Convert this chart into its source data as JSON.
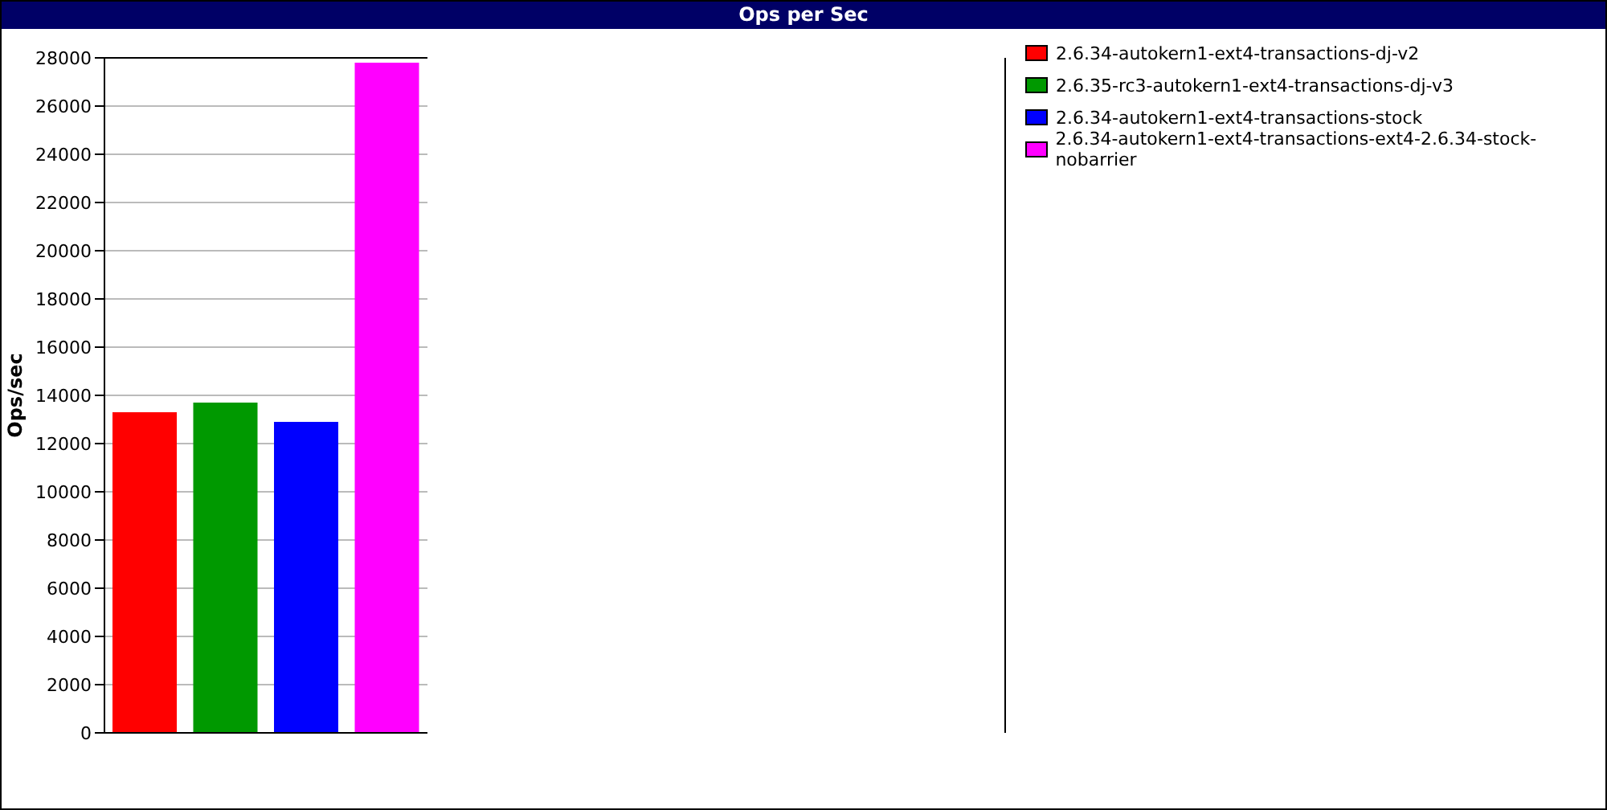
{
  "chart_data": {
    "type": "bar",
    "title": "Ops per Sec",
    "ylabel": "Ops/sec",
    "categories": [
      null,
      null,
      null,
      null
    ],
    "stacked": true,
    "series": [
      {
        "name": "2.6.34-autokern1-ext4-transactions-dj-v2",
        "color": "#ff0000",
        "values": [
          13300,
          null,
          null,
          null
        ]
      },
      {
        "name": "2.6.35-rc3-autokern1-ext4-transactions-dj-v3",
        "color": "#009900",
        "values": [
          null,
          13700,
          null,
          null
        ]
      },
      {
        "name": "2.6.34-autokern1-ext4-transactions-stock",
        "color": "#0000ff",
        "values": [
          null,
          null,
          12900,
          null
        ]
      },
      {
        "name": "2.6.34-autokern1-ext4-transactions-ext4-2.6.34-stock-nobarrier",
        "color": "#ff00ff",
        "values": [
          null,
          null,
          null,
          27800
        ]
      }
    ],
    "ylim": [
      0,
      28000
    ],
    "yticks": [
      0,
      2000,
      4000,
      6000,
      8000,
      10000,
      12000,
      14000,
      16000,
      18000,
      20000,
      22000,
      24000,
      26000,
      28000
    ],
    "grid": "y",
    "legend": "top right"
  }
}
